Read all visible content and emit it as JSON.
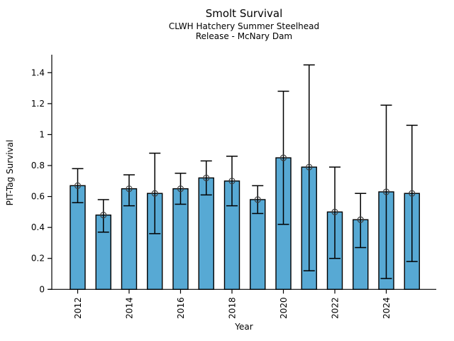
{
  "chart_data": {
    "type": "bar",
    "title": "Smolt Survival",
    "subtitle_line1": "CLWH Hatchery Summer Steelhead",
    "subtitle_line2": "Release - McNary Dam",
    "xlabel": "Year",
    "ylabel": "PIT-Tag Survival",
    "categories": [
      2012,
      2013,
      2014,
      2015,
      2016,
      2017,
      2018,
      2019,
      2020,
      2021,
      2022,
      2023,
      2024,
      2025
    ],
    "values": [
      0.67,
      0.48,
      0.65,
      0.62,
      0.65,
      0.72,
      0.7,
      0.58,
      0.85,
      0.79,
      0.5,
      0.45,
      0.63,
      0.62
    ],
    "error_low": [
      0.56,
      0.37,
      0.54,
      0.36,
      0.55,
      0.61,
      0.54,
      0.49,
      0.42,
      0.12,
      0.2,
      0.27,
      0.07,
      0.18
    ],
    "error_high": [
      0.78,
      0.58,
      0.74,
      0.88,
      0.75,
      0.83,
      0.86,
      0.67,
      1.28,
      1.45,
      0.79,
      0.62,
      1.19,
      1.06
    ],
    "ylim": [
      0,
      1.52
    ],
    "yticks": [
      0,
      0.2,
      0.4,
      0.6,
      0.8,
      1,
      1.2,
      1.4
    ],
    "ytick_labels": [
      "0",
      "0.2",
      "0.4",
      "0.6",
      "0.8",
      "1",
      "1.2",
      "1.4"
    ],
    "xtick_labeled_years": [
      2012,
      2014,
      2016,
      2018,
      2020,
      2022,
      2024
    ],
    "grid": false,
    "legend": null,
    "bar_color": "#57A9D4",
    "bar_edge_color": "#000000",
    "error_bar_color": "#000000",
    "marker": "open-circle",
    "marker_color": "#3D3D3D",
    "axis_color": "#000000"
  }
}
